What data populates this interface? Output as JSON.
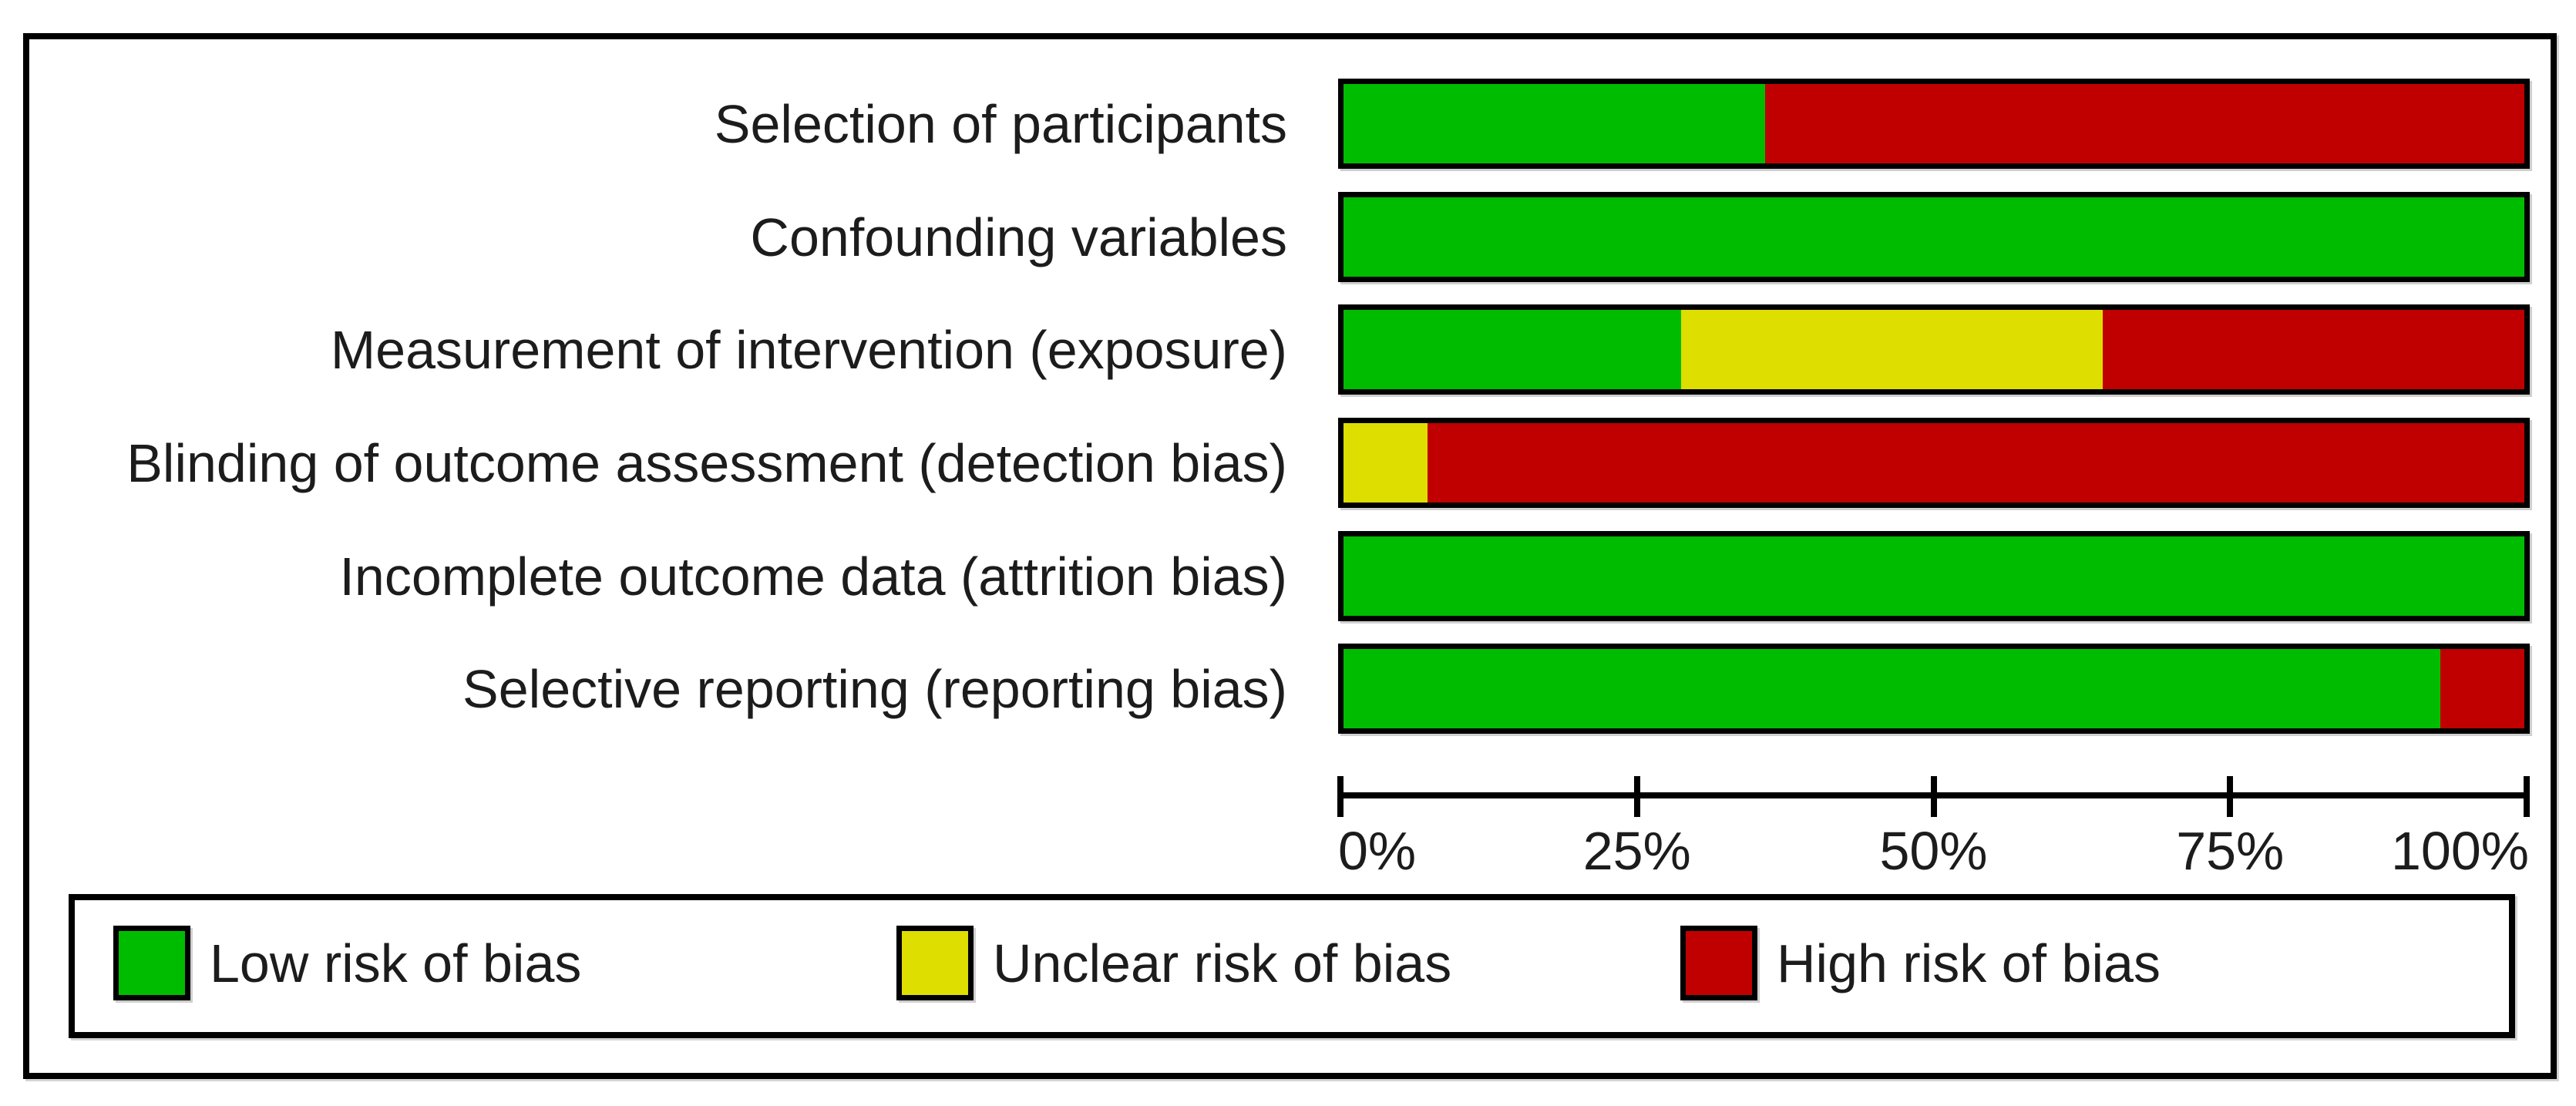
{
  "figure": {
    "description": "Risk of bias graph: review authors' judgements about each risk of bias item presented as percentages across all included studies",
    "colors": {
      "low_risk": "#00bc00",
      "unclear_risk": "#dede00",
      "high_risk": "#c00000",
      "border": "#000000",
      "background": "#ffffff",
      "text": "#1c1c1c"
    }
  },
  "chart_data": {
    "type": "bar",
    "orientation": "horizontal-stacked",
    "title": "",
    "xlabel": "",
    "ylabel": "",
    "xlim": [
      0,
      100
    ],
    "grid": false,
    "legend_position": "bottom",
    "categories": [
      "Selection of participants",
      "Confounding variables",
      "Measurement of intervention (exposure)",
      "Blinding of outcome assessment (detection bias)",
      "Incomplete outcome data (attrition bias)",
      "Selective reporting (reporting bias)"
    ],
    "series": [
      {
        "key": "low",
        "name": "Low risk of bias",
        "color": "#00bc00",
        "values": [
          35.7,
          100,
          28.6,
          0,
          100,
          92.9
        ]
      },
      {
        "key": "unclear",
        "name": "Unclear risk of bias",
        "color": "#dede00",
        "values": [
          0,
          0,
          35.7,
          7.1,
          0,
          0
        ]
      },
      {
        "key": "high",
        "name": "High risk of bias",
        "color": "#c00000",
        "values": [
          64.3,
          0,
          35.7,
          92.9,
          0,
          7.1
        ]
      }
    ],
    "x_ticks": [
      "0%",
      "25%",
      "50%",
      "75%",
      "100%"
    ]
  },
  "legend": {
    "items": [
      {
        "label": "Low risk of bias",
        "color": "#00bc00"
      },
      {
        "label": "Unclear risk of bias",
        "color": "#dede00"
      },
      {
        "label": "High risk of bias",
        "color": "#c00000"
      }
    ]
  }
}
